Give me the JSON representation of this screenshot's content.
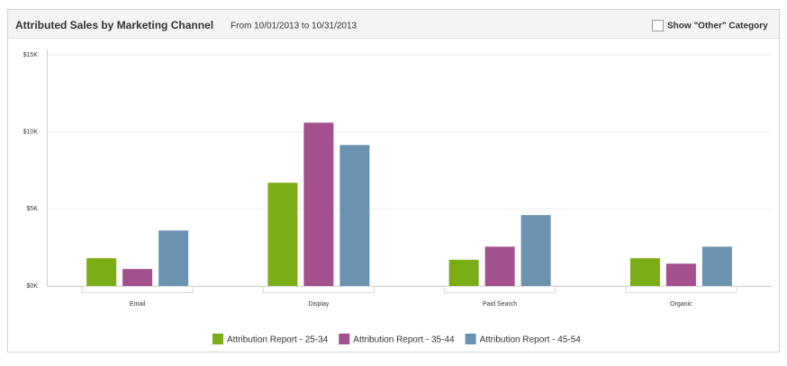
{
  "chart_data": {
    "type": "bar",
    "title": "Attributed Sales by Marketing Channel",
    "subtitle": "From 10/01/2013 to 10/31/2013",
    "toggle_label": "Show \"Other\" Category",
    "categories": [
      "Email",
      "Display",
      "Paid Search",
      "Organic"
    ],
    "series": [
      {
        "name": "Attribution Report - 25-34",
        "color": "#7aad16",
        "values": [
          1800,
          6700,
          1700,
          1800
        ]
      },
      {
        "name": "Attribution Report - 35-44",
        "color": "#a3508c",
        "values": [
          1100,
          10600,
          2550,
          1450
        ]
      },
      {
        "name": "Attribution Report - 45-54",
        "color": "#6b93b0",
        "values": [
          3600,
          9150,
          4600,
          2550
        ]
      }
    ],
    "ylim": [
      0,
      15000
    ],
    "yticks": [
      {
        "value": 0,
        "label": "$0K"
      },
      {
        "value": 5000,
        "label": "$5K"
      },
      {
        "value": 10000,
        "label": "$10K"
      },
      {
        "value": 15000,
        "label": "$15K"
      }
    ],
    "grid": true
  }
}
